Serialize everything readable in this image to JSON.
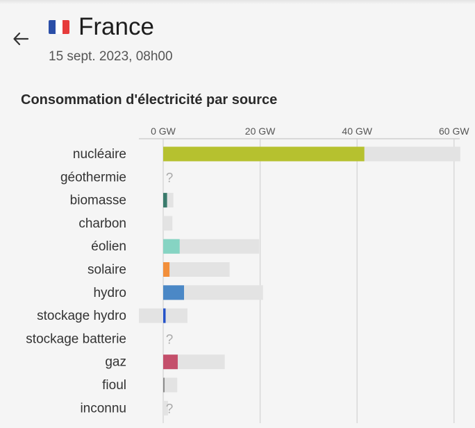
{
  "header": {
    "back_icon": "arrow-left-icon",
    "flag_icon": "france-flag-icon",
    "flag_colors": [
      "#2b4fa8",
      "#ffffff",
      "#e63b3b"
    ],
    "country": "France",
    "datetime": "15 sept. 2023, 08h00"
  },
  "chart_data": {
    "type": "bar",
    "title": "Consommation d'électricité par source",
    "unit": "GW",
    "xlim": [
      -5,
      61
    ],
    "ticks": [
      {
        "value": 0,
        "label": "0 GW"
      },
      {
        "value": 20,
        "label": "20 GW"
      },
      {
        "value": 40,
        "label": "40 GW"
      },
      {
        "value": 60,
        "label": "60 GW"
      }
    ],
    "categories": [
      "nucléaire",
      "géothermie",
      "biomasse",
      "charbon",
      "éolien",
      "solaire",
      "hydro",
      "stockage hydro",
      "stockage batterie",
      "gaz",
      "fioul",
      "inconnu"
    ],
    "series": [
      {
        "name": "consommation",
        "values": [
          41.5,
          null,
          0.8,
          0,
          3.4,
          1.3,
          4.3,
          0.5,
          null,
          3.0,
          0.1,
          null
        ]
      },
      {
        "name": "capacité",
        "min": [
          0,
          null,
          0,
          0,
          0,
          0,
          0,
          -5,
          null,
          0,
          0,
          0
        ],
        "max": [
          61.3,
          null,
          2.1,
          1.9,
          19.8,
          13.7,
          20.6,
          5.0,
          null,
          12.7,
          2.9,
          1.0
        ]
      }
    ],
    "unknown_label": "?",
    "colors": [
      "#b6c12f",
      "#cccccc",
      "#3a7b6c",
      "#888888",
      "#86d4c3",
      "#f28f3b",
      "#4b88c6",
      "#2553c9",
      "#888888",
      "#c44f6b",
      "#8c8c8c",
      "#aaaaaa"
    ],
    "track_color": "#e3e3e3"
  }
}
